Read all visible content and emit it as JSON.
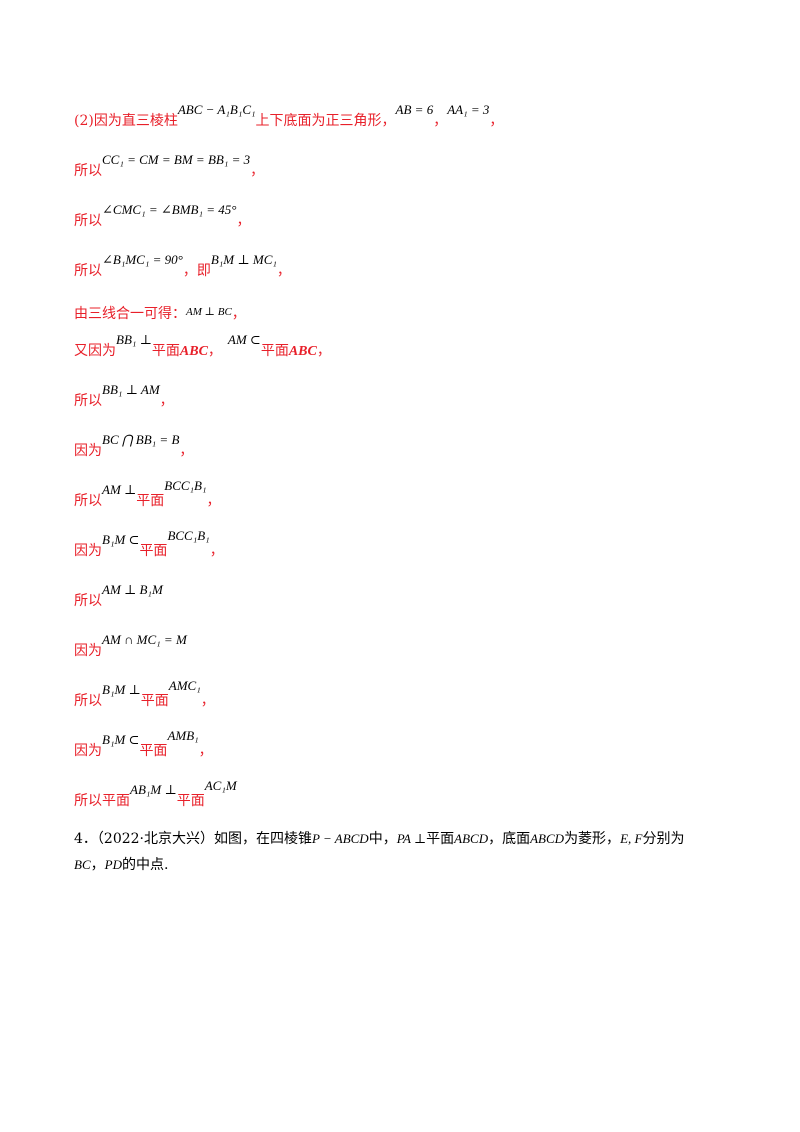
{
  "solution": {
    "l1": {
      "a": "(2)因为直三棱柱",
      "m1": "ABC − A₁B₁C₁",
      "b": "上下底面为正三角形，",
      "m2": "AB = 6",
      "c": "，",
      "m3": "AA₁ = 3",
      "d": "，"
    },
    "l2": {
      "a": "所以",
      "m1": "CC₁ = CM = BM = BB₁ = 3",
      "b": "，"
    },
    "l3": {
      "a": "所以",
      "m1": "∠CMC₁ = ∠BMB₁ = 45°",
      "b": "，"
    },
    "l4": {
      "a": "所以",
      "m1": "∠B₁MC₁ = 90°",
      "b": "，即",
      "m2": "B₁M ⊥ MC₁",
      "c": "，"
    },
    "l5": {
      "a": "由三线合一可得：",
      "m1": "AM ⊥ BC",
      "b": "，"
    },
    "l6": {
      "a": "又因为",
      "m1": "BB₁ ⊥",
      "b": "平面",
      "c": "ABC",
      "d": "，",
      "m2": "AM ⊂",
      "e": "平面",
      "f": "ABC",
      "g": "，"
    },
    "l7": {
      "a": "所以",
      "m1": "BB₁ ⊥ AM",
      "b": "，"
    },
    "l8": {
      "a": "因为",
      "m1": "BC ⋂ BB₁ = B",
      "b": "，"
    },
    "l9": {
      "a": "所以",
      "m1": "AM ⊥",
      "b": "平面",
      "m2": "BCC₁B₁",
      "c": "，"
    },
    "l10": {
      "a": "因为",
      "m1": "B₁M ⊂",
      "b": "平面",
      "m2": "BCC₁B₁",
      "c": "，"
    },
    "l11": {
      "a": "所以",
      "m1": "AM ⊥ B₁M"
    },
    "l12": {
      "a": "因为",
      "m1": "AM ∩ MC₁ = M"
    },
    "l13": {
      "a": "所以",
      "m1": "B₁M ⊥",
      "b": "平面",
      "m2": "AMC₁",
      "c": "，"
    },
    "l14": {
      "a": "因为",
      "m1": "B₁M ⊂",
      "b": "平面",
      "m2": "AMB₁",
      "c": "，"
    },
    "l15": {
      "a": "所以平面",
      "m1": "AB₁M ⊥",
      "b": "平面",
      "m2": "AC₁M"
    }
  },
  "question4": {
    "num": "4．",
    "source": "（2022·北京大兴）",
    "t1": "如图，在四棱锥",
    "m1": "P − ABCD",
    "t2": "中，",
    "m2": "PA ⊥",
    "t3": "平面",
    "m3": "ABCD",
    "t4": "，底面",
    "m4": "ABCD",
    "t5": "为菱形，",
    "m5": "E, F",
    "t6": "分别为",
    "m6": "BC",
    "t7": "，",
    "m7": "PD",
    "t8": "的中点."
  }
}
